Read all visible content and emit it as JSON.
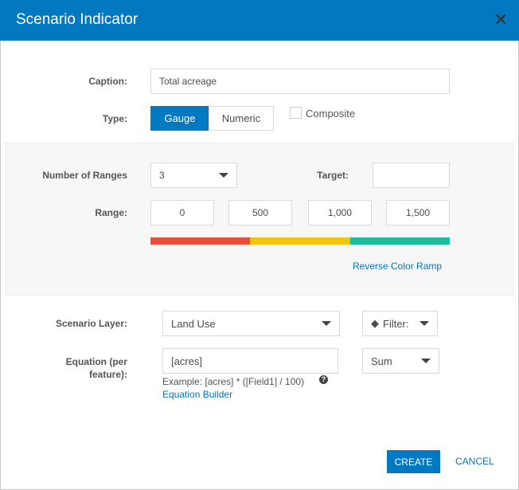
{
  "dialog": {
    "title": "Scenario Indicator"
  },
  "caption": {
    "label": "Caption:",
    "value": "Total acreage"
  },
  "type": {
    "label": "Type:",
    "options": [
      "Gauge",
      "Numeric"
    ],
    "selected": "Gauge",
    "composite_label": "Composite",
    "composite_checked": false
  },
  "ranges": {
    "count_label": "Number of Ranges",
    "count_value": "3",
    "target_label": "Target:",
    "target_value": "",
    "range_label": "Range:",
    "values": [
      "0",
      "500",
      "1,000",
      "1,500"
    ],
    "colors": [
      "#e84c3d",
      "#f1c40f",
      "#1abc9c"
    ],
    "reverse_label": "Reverse Color Ramp"
  },
  "layer": {
    "label": "Scenario Layer:",
    "value": "Land Use",
    "filter_label": "Filter:"
  },
  "equation": {
    "label_line1": "Equation (per",
    "label_line2": "feature):",
    "value": "[acres]",
    "example": "Example: [acres] * ([Field1] / 100)",
    "builder_label": "Equation Builder",
    "aggregate": "Sum"
  },
  "footer": {
    "create": "CREATE",
    "cancel": "CANCEL"
  },
  "accent": "#0079c1"
}
